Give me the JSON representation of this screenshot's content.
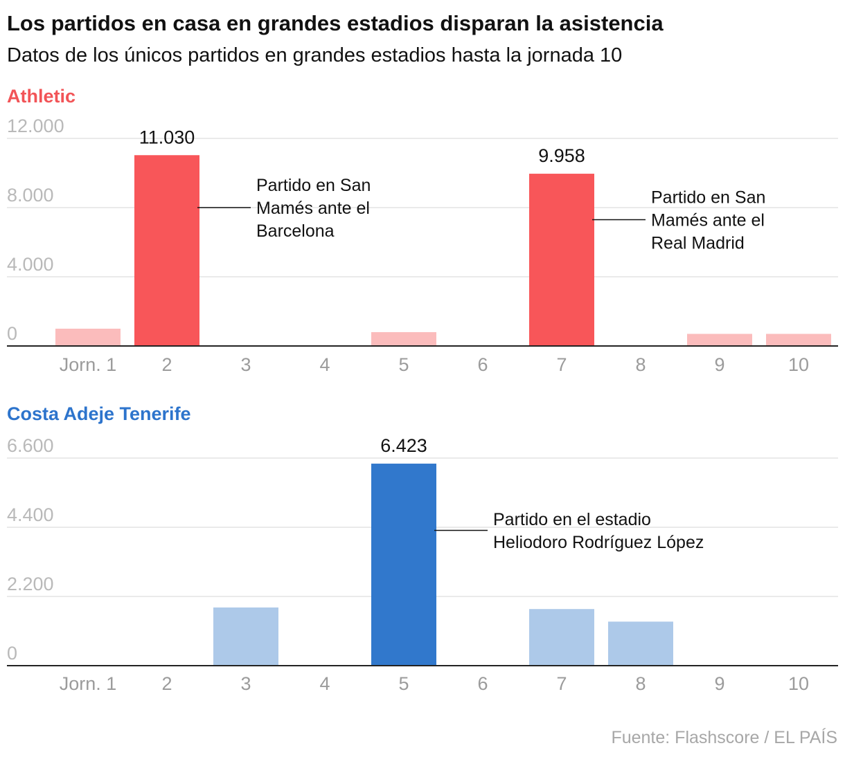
{
  "title": "Los partidos en casa en grandes estadios disparan la asistencia",
  "subtitle": "Datos de los únicos partidos en grandes estadios hasta la jornada 10",
  "source": "Fuente: Flashscore / EL PAÍS",
  "chart_data": [
    {
      "type": "bar",
      "title": "Athletic",
      "title_color": "#f25457",
      "highlight_color": "#f85659",
      "muted_color": "#fbbcbc",
      "categories": [
        "Jorn. 1",
        "2",
        "3",
        "4",
        "5",
        "6",
        "7",
        "8",
        "9",
        "10"
      ],
      "values": [
        1000,
        11030,
        0,
        0,
        800,
        0,
        9958,
        0,
        700,
        700
      ],
      "highlighted": [
        false,
        true,
        false,
        false,
        false,
        false,
        true,
        false,
        false,
        false
      ],
      "data_labels": [
        null,
        "11.030",
        null,
        null,
        null,
        null,
        "9.958",
        null,
        null,
        null
      ],
      "ylim": [
        0,
        12000
      ],
      "yticks": [
        0,
        4000,
        8000,
        12000
      ],
      "ytick_labels": [
        "0",
        "4.000",
        "8.000",
        "12.000"
      ],
      "annotations": [
        {
          "index": 1,
          "value": 8000,
          "lines": [
            "Partido en San",
            "Mamés ante el",
            "Barcelona"
          ]
        },
        {
          "index": 6,
          "value": 7300,
          "lines": [
            "Partido en San",
            "Mamés ante el",
            "Real Madrid"
          ]
        }
      ]
    },
    {
      "type": "bar",
      "title": "Costa Adeje Tenerife",
      "title_color": "#2d74cc",
      "highlight_color": "#3178cc",
      "muted_color": "#adc9e9",
      "categories": [
        "Jorn. 1",
        "2",
        "3",
        "4",
        "5",
        "6",
        "7",
        "8",
        "9",
        "10"
      ],
      "values": [
        0,
        0,
        1850,
        0,
        6423,
        0,
        1800,
        1400,
        0,
        0
      ],
      "highlighted": [
        false,
        false,
        false,
        false,
        true,
        false,
        false,
        false,
        false,
        false
      ],
      "data_labels": [
        null,
        null,
        null,
        null,
        "6.423",
        null,
        null,
        null,
        null,
        null
      ],
      "ylim": [
        0,
        6600
      ],
      "yticks": [
        0,
        2200,
        4400,
        6600
      ],
      "ytick_labels": [
        "0",
        "2.200",
        "4.400",
        "6.600"
      ],
      "annotations": [
        {
          "index": 4,
          "value": 4300,
          "lines": [
            "Partido en el estadio",
            "Heliodoro Rodríguez López"
          ]
        }
      ]
    }
  ]
}
